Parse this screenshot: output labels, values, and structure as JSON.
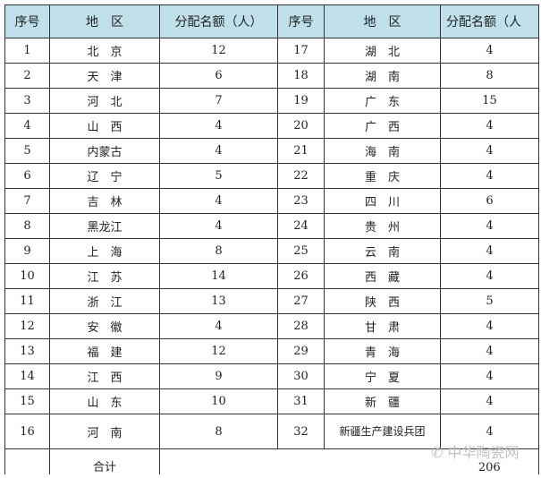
{
  "headers": [
    "序号",
    "地　区",
    "分配名额（人）",
    "序号",
    "地　区",
    "分配名额（人"
  ],
  "rows": [
    [
      "1",
      "北　京",
      "12",
      "17",
      "湖　北",
      "4"
    ],
    [
      "2",
      "天　津",
      "6",
      "18",
      "湖　南",
      "8"
    ],
    [
      "3",
      "河　北",
      "7",
      "19",
      "广　东",
      "15"
    ],
    [
      "4",
      "山　西",
      "4",
      "20",
      "广　西",
      "4"
    ],
    [
      "5",
      "内蒙古",
      "4",
      "21",
      "海　南",
      "4"
    ],
    [
      "6",
      "辽　宁",
      "5",
      "22",
      "重　庆",
      "4"
    ],
    [
      "7",
      "吉　林",
      "4",
      "23",
      "四　川",
      "6"
    ],
    [
      "8",
      "黑龙江",
      "4",
      "24",
      "贵　州",
      "4"
    ],
    [
      "9",
      "上　海",
      "8",
      "25",
      "云　南",
      "4"
    ],
    [
      "10",
      "江　苏",
      "14",
      "26",
      "西　藏",
      "4"
    ],
    [
      "11",
      "浙　江",
      "13",
      "27",
      "陕　西",
      "5"
    ],
    [
      "12",
      "安　徽",
      "4",
      "28",
      "甘　肃",
      "4"
    ],
    [
      "13",
      "福　建",
      "12",
      "29",
      "青　海",
      "4"
    ],
    [
      "14",
      "江　西",
      "9",
      "30",
      "宁　夏",
      "4"
    ],
    [
      "15",
      "山　东",
      "10",
      "31",
      "新　疆",
      "4"
    ],
    [
      "16",
      "河　南",
      "8",
      "32",
      "新疆生产建设兵团",
      "4"
    ]
  ],
  "total": {
    "label": "合计",
    "value": "206"
  },
  "watermark": "中华陶瓷网"
}
